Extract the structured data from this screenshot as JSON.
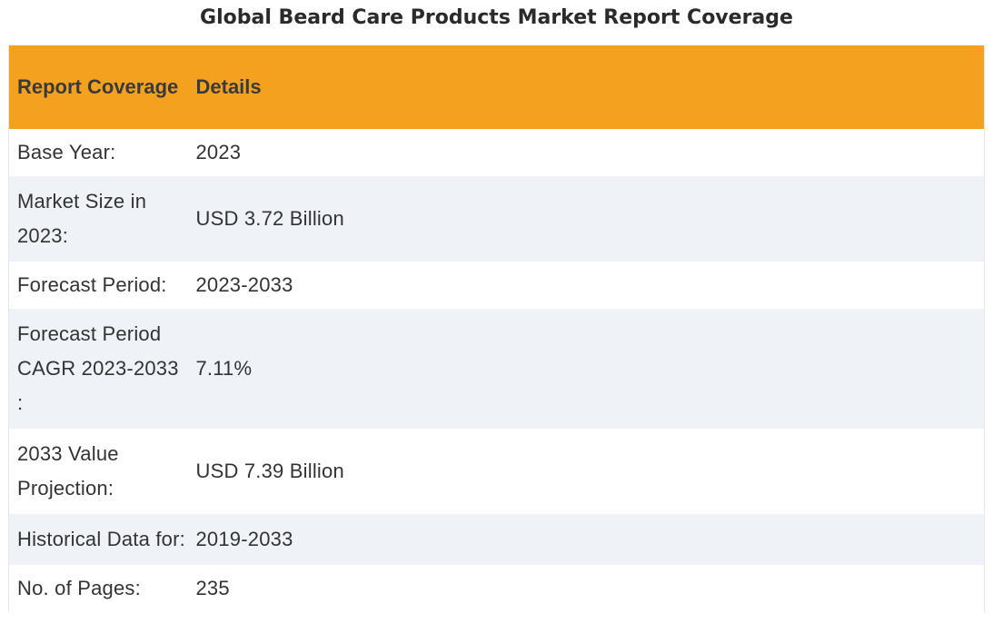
{
  "title": "Global Beard Care Products Market Report Coverage",
  "table": {
    "headers": [
      "Report Coverage",
      "Details"
    ],
    "rows": [
      {
        "label": "Base Year:",
        "value": "2023"
      },
      {
        "label": "Market Size in 2023:",
        "value": "USD 3.72 Billion"
      },
      {
        "label": "Forecast Period:",
        "value": "2023-2033"
      },
      {
        "label": "Forecast Period CAGR 2023-2033 :",
        "value": "7.11%"
      },
      {
        "label": "2033 Value Projection:",
        "value": "USD 7.39 Billion"
      },
      {
        "label": "Historical Data for:",
        "value": "2019-2033"
      },
      {
        "label": "No. of Pages:",
        "value": "235"
      }
    ]
  },
  "colors": {
    "header_background": "#f4a11f",
    "row_alt_background": "#eff2f7"
  }
}
